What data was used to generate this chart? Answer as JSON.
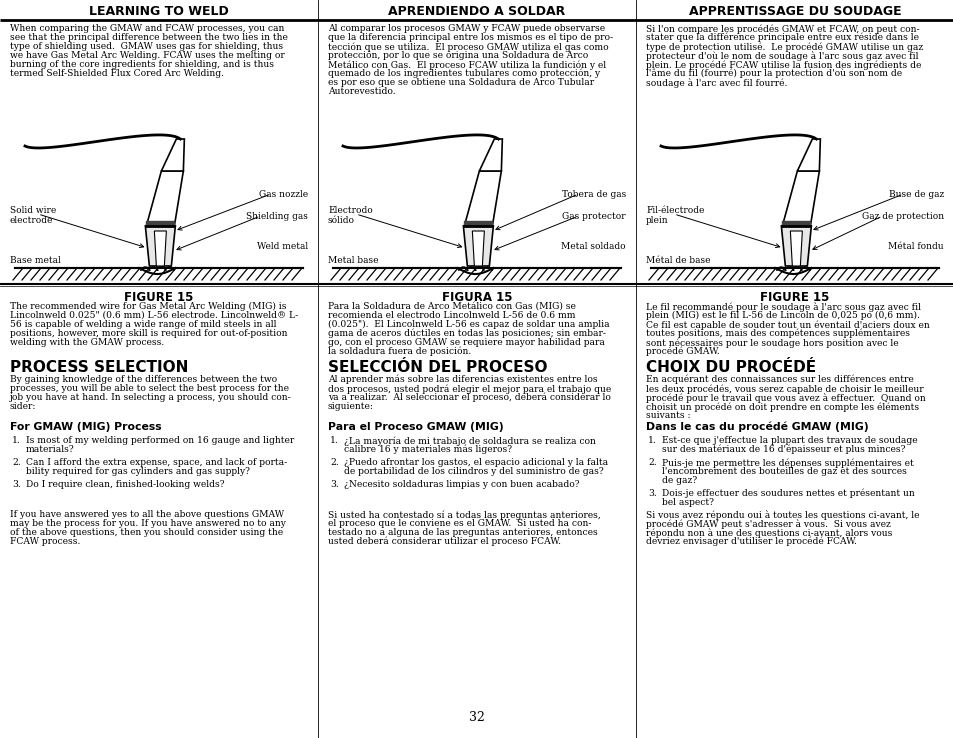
{
  "page_bg": "#ffffff",
  "page_number": "32",
  "col1_header": "LEARNING TO WELD",
  "col2_header": "APRENDIENDO A SOLDAR",
  "col3_header": "APPRENTISSAGE DU SOUDAGE",
  "col1_intro": "When comparing the GMAW and FCAW processes, you can\nsee that the principal difference between the two lies in the\ntype of shielding used.  GMAW uses gas for shielding, thus\nwe have Gas Metal Arc Welding. FCAW uses the melting or\nburning of the core ingredients for shielding, and is thus\ntermed Self-Shielded Flux Cored Arc Welding.",
  "col2_intro": "Al comparar los procesos GMAW y FCAW puede observarse\nque la diferencia principal entre los mismos es el tipo de pro-\ntección que se utiliza.  El proceso GMAW utiliza el gas como\nprotección, por lo que se origina una Soldadura de Arco\nMetálico con Gas.  El proceso FCAW utiliza la fundición y el\nquemado de los ingredientes tubulares como protección, y\nes por eso que se obtiene una Soldadura de Arco Tubular\nAutorevestido.",
  "col3_intro": "Si l'on compare les procédés GMAW et FCAW, on peut con-\nstater que la différence principale entre eux réside dans le\ntype de protection utilisé.  Le procédé GMAW utilise un gaz\nprotecteur d'où le nom de soudage à l'arc sous gaz avec fil\nplein. Le procédé FCAW utilise la fusion des ingrédients de\nl'âme du fil (fourré) pour la protection d'où son nom de\nsoudage à l'arc avec fil fourré.",
  "figure_label": "FIGURE 15",
  "figura_label": "FIGURA 15",
  "col1_fig_caption": "The recommended wire for Gas Metal Arc Welding (MIG) is\nLincolnweld 0.025\" (0.6 mm) L-56 electrode. Lincolnweld® L-\n56 is capable of welding a wide range of mild steels in all\npositions, however, more skill is required for out-of-position\nwelding with the GMAW process.",
  "col2_fig_caption": "Para la Soldadura de Arco Metálico con Gas (MIG) se\nrecomienda el electrodo Lincolnweld L-56 de 0.6 mm\n(0.025\").  El Lincolnweld L-56 es capaz de soldar una amplia\ngama de aceros dúctiles en todas las posiciones; sin embar-\ngo, con el proceso GMAW se requiere mayor habilidad para\nla soldadura fuera de posición.",
  "col3_fig_caption": "Le fil recommandé pour le soudage à l'arc sous gaz avec fil\nplein (MIG) est le fil L-56 de Lincoln de 0,025 po (0,6 mm).\nCe fil est capable de souder tout un éventail d'aciers doux en\ntoutes positions, mais des compétences supplémentaires\nsont nécessaires pour le soudage hors position avec le\nprocédé GMAW.",
  "col1_section_title": "PROCESS SELECTION",
  "col2_section_title": "SELECCIÓN DEL PROCESO",
  "col3_section_title": "CHOIX DU PROCÉDÉ",
  "col1_section_body": "By gaining knowledge of the differences between the two\nprocesses, you will be able to select the best process for the\njob you have at hand. In selecting a process, you should con-\nsider:",
  "col2_section_body": "Al aprender más sobre las diferencias existentes entre los\ndos procesos, usted podrá elegir el mejor para el trabajo que\nva a realizar.  Al seleccionar el proceso, deberá considerar lo\nsiguiente:",
  "col3_section_body": "En acquérant des connaissances sur les différences entre\nles deux procédés, vous serez capable de choisir le meilleur\nprocédé pour le travail que vous avez à effectuer.  Quand on\nchoisit un procédé on doit prendre en compte les éléments\nsuivants :",
  "col1_subsection": "For GMAW (MIG) Process",
  "col2_subsection": "Para el Proceso GMAW (MIG)",
  "col3_subsection": "Dans le cas du procédé GMAW (MIG)",
  "col1_items": [
    "Is most of my welding performed on 16 gauge and lighter\nmaterials?",
    "Can I afford the extra expense, space, and lack of porta-\nbility required for gas cylinders and gas supply?",
    "Do I require clean, finished-looking welds?"
  ],
  "col2_items": [
    "¿La mayoría de mi trabajo de soldadura se realiza con\ncalibre 16 y materiales más ligeros?",
    "¿Puedo afrontar los gastos, el espacio adicional y la falta\nde portabilidad de los cilindros y del suministro de gas?",
    "¿Necesito soldaduras limpias y con buen acabado?"
  ],
  "col3_items": [
    "Est-ce que j'effectue la plupart des travaux de soudage\nsur des matériaux de 16 d'épaisseur et plus minces?",
    "Puis-je me permettre les dépenses supplémentaires et\nl'encombrement des bouteilles de gaz et des sources\nde gaz?",
    "Dois-je effectuer des soudures nettes et présentant un\nbel aspect?"
  ],
  "col1_footer": "If you have answered yes to all the above questions GMAW\nmay be the process for you. If you have answered no to any\nof the above questions, then you should consider using the\nFCAW process.",
  "col2_footer": "Si usted ha contestado sí a todas las preguntas anteriores,\nel proceso que le conviene es el GMAW.  Si usted ha con-\ntestado no a alguna de las preguntas anteriores, entonces\nusted deberá considerar utilizar el proceso FCAW.",
  "col3_footer": "Si vous avez répondu oui à toutes les questions ci-avant, le\nprocédé GMAW peut s'adresser à vous.  Si vous avez\nrépondu non à une des questions ci-avant, alors vous\ndevriez envisager d'utiliser le procédé FCAW.",
  "col1_diag": {
    "solid_wire": "Solid wire\nelectrode",
    "base_metal": "Base metal",
    "gas_nozzle": "Gas nozzle",
    "shielding_gas": "Shielding gas",
    "weld_metal": "Weld metal"
  },
  "col2_diag": {
    "electrodo": "Electrodo\nsólido",
    "metal_base": "Metal base",
    "tobera": "Tobera de gas",
    "gas_protector": "Gas protector",
    "metal_soldado": "Metal soldado"
  },
  "col3_diag": {
    "fil_electrode": "Fil-électrode\nplein",
    "metal_base": "Métal de base",
    "buse": "Buse de gaz",
    "gaz_protection": "Gaz de protection",
    "metal_fondu": "Métal fondu"
  }
}
